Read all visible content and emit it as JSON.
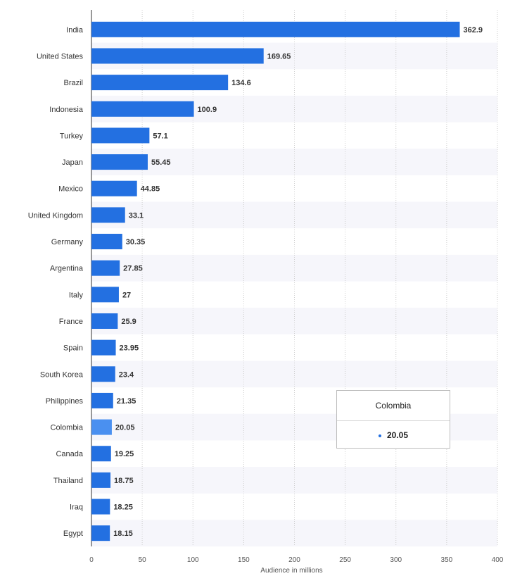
{
  "chart_data": {
    "type": "bar",
    "orientation": "horizontal",
    "categories": [
      "India",
      "United States",
      "Brazil",
      "Indonesia",
      "Turkey",
      "Japan",
      "Mexico",
      "United Kingdom",
      "Germany",
      "Argentina",
      "Italy",
      "France",
      "Spain",
      "South Korea",
      "Philippines",
      "Colombia",
      "Canada",
      "Thailand",
      "Iraq",
      "Egypt"
    ],
    "values": [
      362.9,
      169.65,
      134.6,
      100.9,
      57.1,
      55.45,
      44.85,
      33.1,
      30.35,
      27.85,
      27,
      25.9,
      23.95,
      23.4,
      21.35,
      20.05,
      19.25,
      18.75,
      18.25,
      18.15
    ],
    "value_labels": [
      "362.9",
      "169.65",
      "134.6",
      "100.9",
      "57.1",
      "55.45",
      "44.85",
      "33.1",
      "30.35",
      "27.85",
      "27",
      "25.9",
      "23.95",
      "23.4",
      "21.35",
      "20.05",
      "19.25",
      "18.75",
      "18.25",
      "18.15"
    ],
    "xlabel": "Audience in millions",
    "xlim": [
      0,
      400
    ],
    "xticks": [
      "0",
      "50",
      "100",
      "150",
      "200",
      "250",
      "300",
      "350",
      "400"
    ],
    "grid": true,
    "colors": {
      "bar": "#2370e1",
      "highlight": "#4a90f0",
      "band": "#f6f6fb"
    },
    "highlighted_category": "Colombia"
  },
  "tooltip": {
    "title": "Colombia",
    "value": "20.05"
  }
}
